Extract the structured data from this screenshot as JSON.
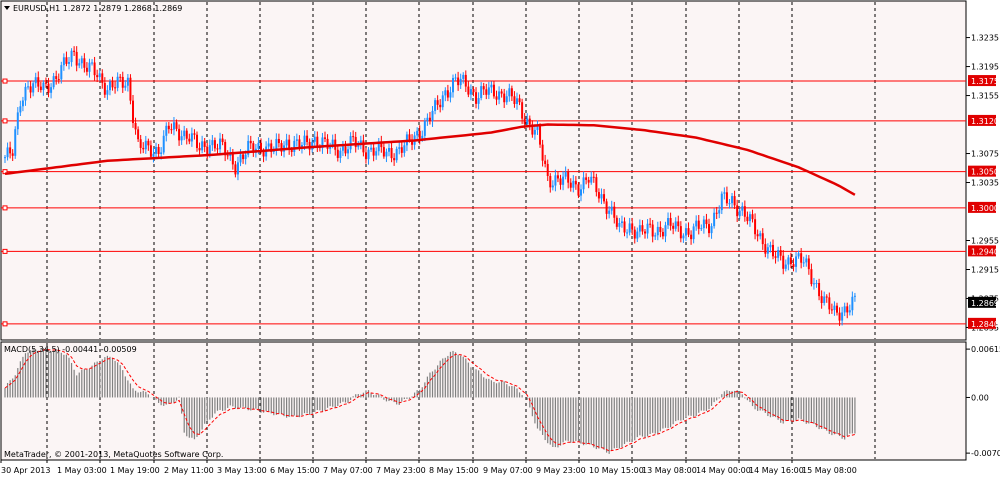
{
  "header": {
    "symbol_line": "EURUSD,H1  1.2872 1.2879 1.2868 1.2869",
    "macd_line": "MACD(5,34,5) -0.00441 -0.00509",
    "copyright": "MetaTrader, © 2001-2013, MetaQuotes Software Corp."
  },
  "colors": {
    "background": "#fbf5f5",
    "bull_candle": "#1e90ff",
    "bear_candle": "#ff0000",
    "ma_line": "#e00000",
    "level_line": "#ff0000",
    "grid": "#000000",
    "macd_hist": "#808080",
    "macd_signal": "#ff0000"
  },
  "price_axis": {
    "ticks": [
      "1.3235",
      "1.3195",
      "1.3155",
      "1.3075",
      "1.3035",
      "1.2955",
      "1.2915",
      "1.2875",
      "1.2835"
    ],
    "range": [
      1.2826,
      1.3262
    ]
  },
  "level_lines": [
    "1.3175",
    "1.3120",
    "1.3050",
    "1.3000",
    "1.2940",
    "1.2840"
  ],
  "current_price": "1.2869",
  "macd_axis": {
    "ticks": [
      "0.00615",
      "0.00",
      "-0.00708"
    ],
    "range": [
      -0.0077,
      0.0068
    ]
  },
  "time_axis": {
    "labels": [
      "30 Apr 2013",
      "1 May 03:00",
      "1 May 19:00",
      "2 May 11:00",
      "3 May 13:00",
      "6 May 15:00",
      "7 May 07:00",
      "7 May 23:00",
      "8 May 15:00",
      "9 May 07:00",
      "9 May 23:00",
      "10 May 15:00",
      "13 May 08:00",
      "14 May 00:00",
      "14 May 16:00",
      "15 May 08:00"
    ]
  },
  "chart_data": {
    "type": "candlestick",
    "timeframe": "H1",
    "symbol": "EURUSD",
    "x_labels": [
      "30 Apr 2013",
      "1 May 03:00",
      "1 May 19:00",
      "2 May 11:00",
      "3 May 13:00",
      "6 May 15:00",
      "7 May 07:00",
      "7 May 23:00",
      "8 May 15:00",
      "9 May 07:00",
      "9 May 23:00",
      "10 May 15:00",
      "13 May 08:00",
      "14 May 00:00",
      "14 May 16:00",
      "15 May 08:00"
    ],
    "close_anchors": [
      [
        0,
        1.307
      ],
      [
        3,
        1.3075
      ],
      [
        6,
        1.315
      ],
      [
        9,
        1.317
      ],
      [
        15,
        1.3165
      ],
      [
        20,
        1.318
      ],
      [
        24,
        1.32
      ],
      [
        27,
        1.3215
      ],
      [
        31,
        1.3195
      ],
      [
        36,
        1.3185
      ],
      [
        40,
        1.3165
      ],
      [
        44,
        1.317
      ],
      [
        48,
        1.3175
      ],
      [
        52,
        1.3085
      ],
      [
        56,
        1.308
      ],
      [
        60,
        1.308
      ],
      [
        64,
        1.311
      ],
      [
        68,
        1.3105
      ],
      [
        72,
        1.31
      ],
      [
        76,
        1.308
      ],
      [
        80,
        1.309
      ],
      [
        84,
        1.3085
      ],
      [
        90,
        1.306
      ],
      [
        95,
        1.308
      ],
      [
        100,
        1.3085
      ],
      [
        105,
        1.308
      ],
      [
        110,
        1.309
      ],
      [
        116,
        1.3085
      ],
      [
        121,
        1.3095
      ],
      [
        126,
        1.3085
      ],
      [
        131,
        1.308
      ],
      [
        136,
        1.309
      ],
      [
        141,
        1.308
      ],
      [
        145,
        1.308
      ],
      [
        149,
        1.3075
      ],
      [
        154,
        1.308
      ],
      [
        158,
        1.309
      ],
      [
        163,
        1.311
      ],
      [
        168,
        1.3135
      ],
      [
        172,
        1.316
      ],
      [
        176,
        1.3175
      ],
      [
        180,
        1.317
      ],
      [
        184,
        1.3155
      ],
      [
        188,
        1.316
      ],
      [
        192,
        1.316
      ],
      [
        196,
        1.3155
      ],
      [
        200,
        1.3145
      ],
      [
        204,
        1.312
      ],
      [
        208,
        1.31
      ],
      [
        212,
        1.304
      ],
      [
        216,
        1.304
      ],
      [
        220,
        1.3035
      ],
      [
        224,
        1.303
      ],
      [
        228,
        1.304
      ],
      [
        232,
        1.302
      ],
      [
        236,
        1.3
      ],
      [
        240,
        1.297
      ],
      [
        244,
        1.2975
      ],
      [
        248,
        1.2965
      ],
      [
        252,
        1.297
      ],
      [
        256,
        1.297
      ],
      [
        260,
        1.2975
      ],
      [
        264,
        1.297
      ],
      [
        268,
        1.2965
      ],
      [
        272,
        1.2975
      ],
      [
        276,
        1.298
      ],
      [
        280,
        1.301
      ],
      [
        284,
        1.301
      ],
      [
        288,
        1.2995
      ],
      [
        292,
        1.2975
      ],
      [
        296,
        1.2955
      ],
      [
        300,
        1.2935
      ],
      [
        304,
        1.2925
      ],
      [
        308,
        1.293
      ],
      [
        312,
        1.2925
      ],
      [
        316,
        1.29
      ],
      [
        320,
        1.287
      ],
      [
        324,
        1.2855
      ],
      [
        328,
        1.286
      ],
      [
        332,
        1.2869
      ]
    ],
    "moving_average_anchors": [
      [
        0,
        1.3047
      ],
      [
        40,
        1.3065
      ],
      [
        80,
        1.3073
      ],
      [
        120,
        1.3084
      ],
      [
        160,
        1.3093
      ],
      [
        190,
        1.3104
      ],
      [
        202,
        1.3112
      ],
      [
        212,
        1.3115
      ],
      [
        230,
        1.3114
      ],
      [
        250,
        1.3107
      ],
      [
        270,
        1.3097
      ],
      [
        290,
        1.308
      ],
      [
        310,
        1.3056
      ],
      [
        325,
        1.3032
      ],
      [
        332,
        1.3018
      ]
    ],
    "macd_histogram_anchors": [
      [
        0,
        0.0012
      ],
      [
        4,
        0.003
      ],
      [
        8,
        0.0058
      ],
      [
        14,
        0.0062
      ],
      [
        20,
        0.006
      ],
      [
        24,
        0.0055
      ],
      [
        28,
        0.003
      ],
      [
        34,
        0.004
      ],
      [
        38,
        0.005
      ],
      [
        42,
        0.0052
      ],
      [
        46,
        0.0035
      ],
      [
        50,
        0.001
      ],
      [
        56,
        0.0005
      ],
      [
        60,
        -0.0008
      ],
      [
        64,
        -0.001
      ],
      [
        68,
        0.0
      ],
      [
        70,
        -0.0045
      ],
      [
        74,
        -0.0055
      ],
      [
        78,
        -0.0035
      ],
      [
        82,
        -0.002
      ],
      [
        88,
        -0.0012
      ],
      [
        96,
        -0.0015
      ],
      [
        104,
        -0.002
      ],
      [
        112,
        -0.0025
      ],
      [
        120,
        -0.002
      ],
      [
        128,
        -0.0012
      ],
      [
        134,
        -0.0005
      ],
      [
        138,
        0.0005
      ],
      [
        142,
        0.0008
      ],
      [
        146,
        0.0002
      ],
      [
        150,
        -0.0005
      ],
      [
        154,
        -0.0008
      ],
      [
        158,
        0.0
      ],
      [
        162,
        0.001
      ],
      [
        166,
        0.003
      ],
      [
        170,
        0.0045
      ],
      [
        174,
        0.0058
      ],
      [
        178,
        0.0055
      ],
      [
        182,
        0.004
      ],
      [
        186,
        0.003
      ],
      [
        190,
        0.002
      ],
      [
        194,
        0.002
      ],
      [
        198,
        0.0015
      ],
      [
        202,
        0.0005
      ],
      [
        204,
        -0.0005
      ],
      [
        208,
        -0.004
      ],
      [
        214,
        -0.0065
      ],
      [
        220,
        -0.0055
      ],
      [
        228,
        -0.006
      ],
      [
        236,
        -0.007
      ],
      [
        242,
        -0.006
      ],
      [
        248,
        -0.005
      ],
      [
        252,
        -0.0048
      ],
      [
        258,
        -0.004
      ],
      [
        264,
        -0.0028
      ],
      [
        270,
        -0.0022
      ],
      [
        276,
        -0.0012
      ],
      [
        280,
        0.0005
      ],
      [
        284,
        0.001
      ],
      [
        288,
        0.0005
      ],
      [
        292,
        -0.0012
      ],
      [
        298,
        -0.0022
      ],
      [
        304,
        -0.0032
      ],
      [
        310,
        -0.0028
      ],
      [
        316,
        -0.0035
      ],
      [
        322,
        -0.0045
      ],
      [
        328,
        -0.0052
      ],
      [
        332,
        -0.0044
      ]
    ]
  }
}
